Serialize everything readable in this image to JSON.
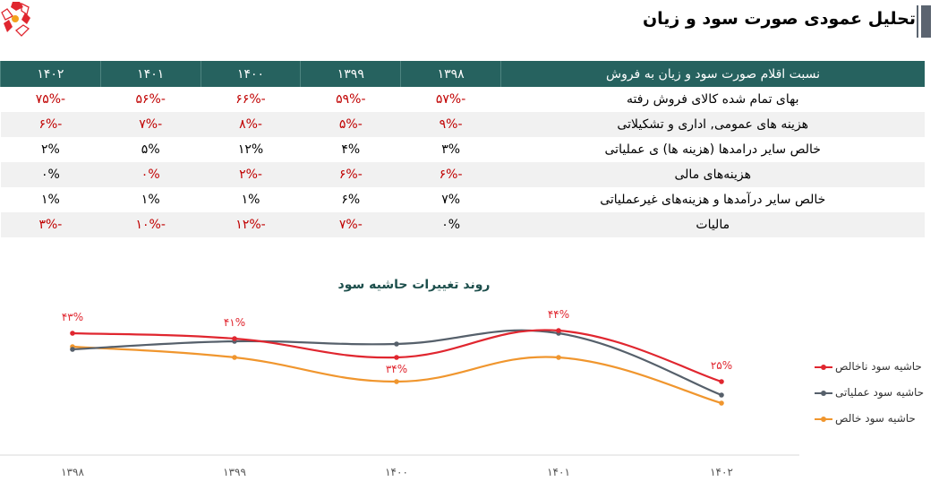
{
  "header": {
    "title": "تحلیل عمودی صورت سود و زیان"
  },
  "table": {
    "columns": [
      "نسبت اقلام صورت سود و زیان به فروش",
      "۱۳۹۸",
      "۱۳۹۹",
      "۱۴۰۰",
      "۱۴۰۱",
      "۱۴۰۲"
    ],
    "rows": [
      {
        "label": "بهای تمام شده کالای فروش رفته",
        "values": [
          "-۵۷%",
          "-۵۹%",
          "-۶۶%",
          "-۵۶%",
          "-۷۵%"
        ],
        "negative": [
          true,
          true,
          true,
          true,
          true
        ]
      },
      {
        "label": "هزینه های عمومی, اداری و تشکیلاتی",
        "values": [
          "-۹%",
          "-۵%",
          "-۸%",
          "-۷%",
          "-۶%"
        ],
        "negative": [
          true,
          true,
          true,
          true,
          true
        ]
      },
      {
        "label": "خالص سایر درامدها (هزینه ها) ی عملیاتی",
        "values": [
          "۳%",
          "۴%",
          "۱۲%",
          "۵%",
          "۲%"
        ],
        "negative": [
          false,
          false,
          false,
          false,
          false
        ]
      },
      {
        "label": "هزینه‌های مالی",
        "values": [
          "-۶%",
          "-۶%",
          "-۲%",
          "۰%",
          "۰%"
        ],
        "negative": [
          true,
          true,
          true,
          true,
          false
        ]
      },
      {
        "label": "خالص سایر درآمدها و هزینه‌های غیرعملیاتی",
        "values": [
          "۷%",
          "۶%",
          "۱%",
          "۱%",
          "۱%"
        ],
        "negative": [
          false,
          false,
          false,
          false,
          false
        ]
      },
      {
        "label": "مالیات",
        "values": [
          "۰%",
          "-۷%",
          "-۱۲%",
          "-۱۰%",
          "-۳%"
        ],
        "negative": [
          false,
          true,
          true,
          true,
          true
        ]
      }
    ],
    "colors": {
      "header_bg": "#26625f",
      "negative": "#c00000"
    }
  },
  "chart_data": {
    "type": "line",
    "title": "روند تغییرات حاشیه سود",
    "categories": [
      "۱۳۹۸",
      "۱۳۹۹",
      "۱۴۰۰",
      "۱۴۰۱",
      "۱۴۰۲"
    ],
    "legend_position": "right",
    "grid": false,
    "series": [
      {
        "name": "حاشیه سود ناخالص",
        "color": "#e0262f",
        "values": [
          43,
          41,
          34,
          44,
          25
        ],
        "labels": [
          "۴۳%",
          "۴۱%",
          "۳۴%",
          "۴۴%",
          "۲۵%"
        ]
      },
      {
        "name": "حاشیه سود عملیاتی",
        "color": "#56606b",
        "values": [
          37,
          40,
          39,
          43,
          20
        ]
      },
      {
        "name": "حاشیه سود خالص",
        "color": "#f0962e",
        "values": [
          38,
          34,
          25,
          34,
          17
        ]
      }
    ]
  }
}
